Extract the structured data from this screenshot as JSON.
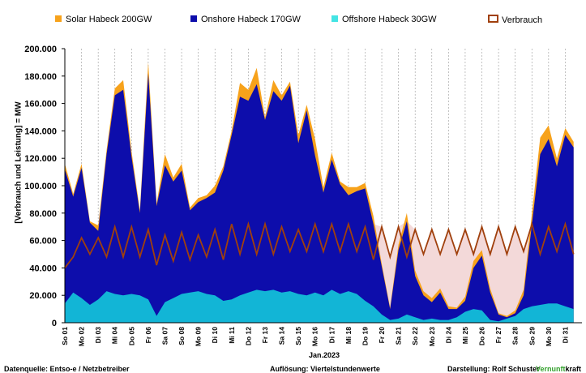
{
  "legend": {
    "solar": "Solar Habeck 200GW",
    "onshore": "Onshore Habeck 170GW",
    "offshore": "Offshore Habeck 30GW",
    "verbrauch": "Verbrauch"
  },
  "footer": {
    "source": "Datenquelle: Entso-e  / Netzbetreiber",
    "resolution": "Auflösung: Viertelstundenwerte",
    "author": "Darstellung:  Rolf Schuster",
    "brand_part1": "Vernunft",
    "brand_part2": "kraft"
  },
  "chart_data": {
    "type": "area",
    "title": "",
    "xlabel": "Jan.2023",
    "ylabel": "[Verbrauch und Leistung] =  MW",
    "ylim": [
      0,
      200000
    ],
    "yticks": [
      0,
      20000,
      40000,
      60000,
      80000,
      100000,
      120000,
      140000,
      160000,
      180000,
      200000
    ],
    "ytick_labels": [
      "0",
      "20.000",
      "40.000",
      "60.000",
      "80.000",
      "100.000",
      "120.000",
      "140.000",
      "160.000",
      "180.000",
      "200.000"
    ],
    "grid": "vertical dashed",
    "legend_position": "top",
    "colors": {
      "solar": "#f7a21b",
      "onshore": "#0d0dab",
      "offshore": "#12b5d6",
      "verbrauch": "#a0400d",
      "deficit": "#f3d9d9"
    },
    "x_tick_labels": [
      "So 01",
      "Mo 02",
      "Di 03",
      "Mi 04",
      "Do 05",
      "Fr 06",
      "Sa 07",
      "So 08",
      "Mo 09",
      "Di 10",
      "Mi 11",
      "Do 12",
      "Fr 13",
      "Sa 14",
      "So 15",
      "Mo 16",
      "Di 17",
      "Mi 18",
      "Do 19",
      "Fr 20",
      "Sa 21",
      "So 22",
      "Mo 23",
      "Di 24",
      "Mi 25",
      "Do 26",
      "Fr 27",
      "Sa 28",
      "So 29",
      "Mo 30",
      "Di 31"
    ],
    "x": [
      1.0,
      1.5,
      2.0,
      2.5,
      3.0,
      3.5,
      4.0,
      4.5,
      5.0,
      5.5,
      6.0,
      6.5,
      7.0,
      7.5,
      8.0,
      8.5,
      9.0,
      9.5,
      10.0,
      10.5,
      11.0,
      11.5,
      12.0,
      12.5,
      13.0,
      13.5,
      14.0,
      14.5,
      15.0,
      15.5,
      16.0,
      16.5,
      17.0,
      17.5,
      18.0,
      18.5,
      19.0,
      19.5,
      20.0,
      20.5,
      21.0,
      21.5,
      22.0,
      22.5,
      23.0,
      23.5,
      24.0,
      24.5,
      25.0,
      25.5,
      26.0,
      26.5,
      27.0,
      27.5,
      28.0,
      28.5,
      29.0,
      29.5,
      30.0,
      30.5,
      31.0,
      31.5
    ],
    "series": [
      {
        "name": "Offshore Habeck 30GW",
        "values": [
          14000,
          22000,
          18000,
          13000,
          17000,
          23000,
          21000,
          20000,
          21000,
          20000,
          17000,
          5000,
          15000,
          18000,
          21000,
          22000,
          23000,
          21000,
          20000,
          16000,
          17000,
          20000,
          22000,
          24000,
          23000,
          24000,
          22000,
          23000,
          21000,
          20000,
          22000,
          20000,
          24000,
          21000,
          23000,
          21000,
          16000,
          12000,
          6000,
          2000,
          3000,
          6000,
          4000,
          2000,
          3000,
          2000,
          2000,
          4000,
          8000,
          10000,
          9000,
          2000,
          1000,
          3000,
          5000,
          10000,
          12000,
          13000,
          14000,
          14000,
          12000,
          10000
        ]
      },
      {
        "name": "Onshore Habeck 170GW",
        "values": [
          98000,
          70000,
          95000,
          60000,
          50000,
          100000,
          145000,
          150000,
          100000,
          60000,
          165000,
          80000,
          100000,
          85000,
          90000,
          60000,
          65000,
          70000,
          75000,
          95000,
          120000,
          145000,
          140000,
          150000,
          125000,
          145000,
          140000,
          150000,
          110000,
          135000,
          100000,
          75000,
          95000,
          80000,
          70000,
          75000,
          82000,
          60000,
          35000,
          8000,
          50000,
          68000,
          30000,
          18000,
          12000,
          20000,
          8000,
          6000,
          8000,
          30000,
          40000,
          20000,
          5000,
          1000,
          2000,
          10000,
          60000,
          110000,
          120000,
          100000,
          125000,
          118000
        ]
      },
      {
        "name": "Solar Habeck 200GW",
        "values": [
          4000,
          2000,
          3000,
          1000,
          4000,
          3000,
          5000,
          7000,
          4000,
          2000,
          8000,
          2000,
          8000,
          3000,
          5000,
          2000,
          3000,
          2000,
          5000,
          3000,
          3000,
          10000,
          8000,
          12000,
          2000,
          8000,
          4000,
          3000,
          6000,
          4000,
          12000,
          4000,
          5000,
          2000,
          6000,
          3000,
          4000,
          6000,
          2000,
          1000,
          4000,
          6000,
          4000,
          3000,
          3000,
          3000,
          2000,
          1000,
          3000,
          5000,
          4000,
          3000,
          1000,
          1000,
          2000,
          4000,
          8000,
          12000,
          10000,
          6000,
          5000,
          4000
        ]
      },
      {
        "name": "Verbrauch",
        "values": [
          40000,
          48000,
          62000,
          50000,
          62000,
          48000,
          70000,
          48000,
          70000,
          48000,
          68000,
          42000,
          64000,
          45000,
          66000,
          46000,
          64000,
          48000,
          68000,
          46000,
          72000,
          50000,
          72000,
          50000,
          72000,
          50000,
          70000,
          52000,
          68000,
          52000,
          72000,
          52000,
          72000,
          52000,
          72000,
          52000,
          70000,
          46000,
          70000,
          48000,
          70000,
          48000,
          68000,
          50000,
          68000,
          50000,
          68000,
          50000,
          68000,
          50000,
          70000,
          50000,
          70000,
          50000,
          70000,
          52000,
          72000,
          50000,
          70000,
          52000,
          72000,
          50000
        ]
      }
    ]
  }
}
